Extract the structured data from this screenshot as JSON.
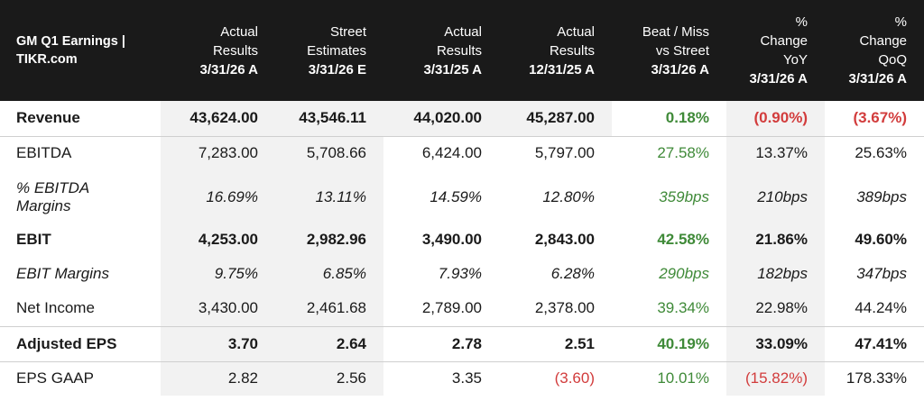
{
  "header": {
    "title_line1": "GM Q1 Earnings |",
    "title_line2": "TIKR.com",
    "columns": [
      {
        "line1": "",
        "line2": "Actual",
        "line3": "Results",
        "date": "3/31/26 A"
      },
      {
        "line1": "",
        "line2": "Street",
        "line3": "Estimates",
        "date": "3/31/26 E"
      },
      {
        "line1": "",
        "line2": "Actual",
        "line3": "Results",
        "date": "3/31/25 A"
      },
      {
        "line1": "",
        "line2": "Actual",
        "line3": "Results",
        "date": "12/31/25 A"
      },
      {
        "line1": "",
        "line2": "Beat / Miss",
        "line3": "vs Street",
        "date": "3/31/26 A"
      },
      {
        "line1": "%",
        "line2": "Change",
        "line3": "YoY",
        "date": "3/31/26 A"
      },
      {
        "line1": "%",
        "line2": "Change",
        "line3": "QoQ",
        "date": "3/31/26 A"
      }
    ]
  },
  "rows": [
    {
      "label": "Revenue",
      "values": [
        "43,624.00",
        "43,546.11",
        "44,020.00",
        "45,287.00",
        "0.18%",
        "(0.90%)",
        "(3.67%)"
      ]
    },
    {
      "label": "EBITDA",
      "values": [
        "7,283.00",
        "5,708.66",
        "6,424.00",
        "5,797.00",
        "27.58%",
        "13.37%",
        "25.63%"
      ]
    },
    {
      "label": "% EBITDA Margins",
      "values": [
        "16.69%",
        "13.11%",
        "14.59%",
        "12.80%",
        "359bps",
        "210bps",
        "389bps"
      ]
    },
    {
      "label": "EBIT",
      "values": [
        "4,253.00",
        "2,982.96",
        "3,490.00",
        "2,843.00",
        "42.58%",
        "21.86%",
        "49.60%"
      ]
    },
    {
      "label": "EBIT Margins",
      "values": [
        "9.75%",
        "6.85%",
        "7.93%",
        "6.28%",
        "290bps",
        "182bps",
        "347bps"
      ]
    },
    {
      "label": "Net Income",
      "values": [
        "3,430.00",
        "2,461.68",
        "2,789.00",
        "2,378.00",
        "39.34%",
        "22.98%",
        "44.24%"
      ]
    },
    {
      "label": "Adjusted EPS",
      "values": [
        "3.70",
        "2.64",
        "2.78",
        "2.51",
        "40.19%",
        "33.09%",
        "47.41%"
      ]
    },
    {
      "label": "EPS GAAP",
      "values": [
        "2.82",
        "2.56",
        "3.35",
        "(3.60)",
        "10.01%",
        "(15.82%)",
        "178.33%"
      ]
    }
  ],
  "colors": {
    "header_bg": "#1a1a1a",
    "positive": "#3f8a38",
    "negative": "#d23c3c",
    "shaded_column": "#f2f2f2"
  }
}
